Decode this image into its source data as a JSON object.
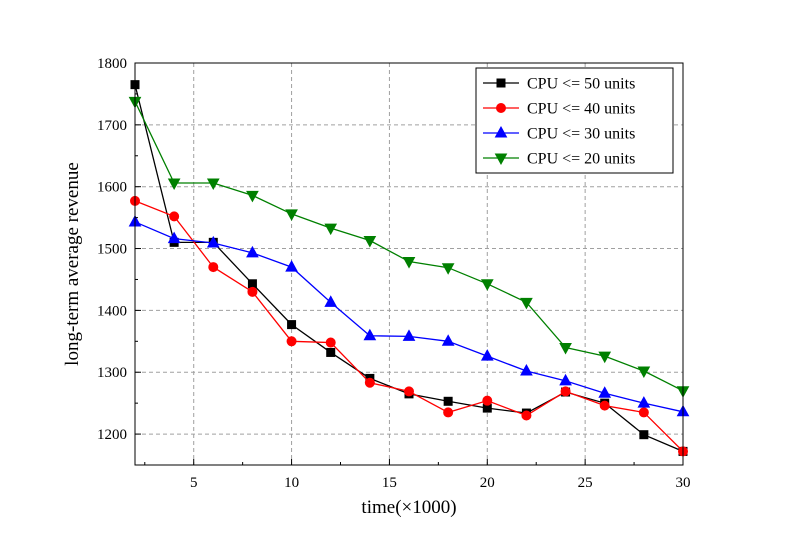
{
  "chart_data": {
    "type": "line",
    "xlabel": "time(×1000)",
    "ylabel": "long-term average revenue",
    "xlim": [
      2,
      30
    ],
    "ylim": [
      1150,
      1800
    ],
    "xticks": [
      5,
      10,
      15,
      20,
      25,
      30
    ],
    "yticks": [
      1200,
      1300,
      1400,
      1500,
      1600,
      1700,
      1800
    ],
    "grid": true,
    "legend_position": "top-right",
    "x": [
      2,
      4,
      6,
      8,
      10,
      12,
      14,
      16,
      18,
      20,
      22,
      24,
      26,
      28,
      30
    ],
    "series": [
      {
        "name": "CPU <= 50 units",
        "color": "#000000",
        "marker": "square",
        "values": [
          1765,
          1510,
          1510,
          1443,
          1377,
          1332,
          1290,
          1265,
          1253,
          1242,
          1234,
          1268,
          1250,
          1199,
          1172
        ]
      },
      {
        "name": "CPU <= 40 units",
        "color": "#ff0000",
        "marker": "circle",
        "values": [
          1577,
          1552,
          1470,
          1430,
          1350,
          1348,
          1283,
          1269,
          1235,
          1254,
          1230,
          1269,
          1246,
          1235,
          1172
        ]
      },
      {
        "name": "CPU <= 30 units",
        "color": "#0000ff",
        "marker": "triangle-up",
        "values": [
          1543,
          1516,
          1509,
          1493,
          1470,
          1413,
          1359,
          1358,
          1350,
          1326,
          1302,
          1286,
          1266,
          1250,
          1236
        ]
      },
      {
        "name": "CPU <= 20 units",
        "color": "#008000",
        "marker": "triangle-down",
        "values": [
          1738,
          1606,
          1606,
          1586,
          1556,
          1533,
          1513,
          1479,
          1469,
          1443,
          1413,
          1340,
          1326,
          1302,
          1270
        ]
      }
    ]
  }
}
